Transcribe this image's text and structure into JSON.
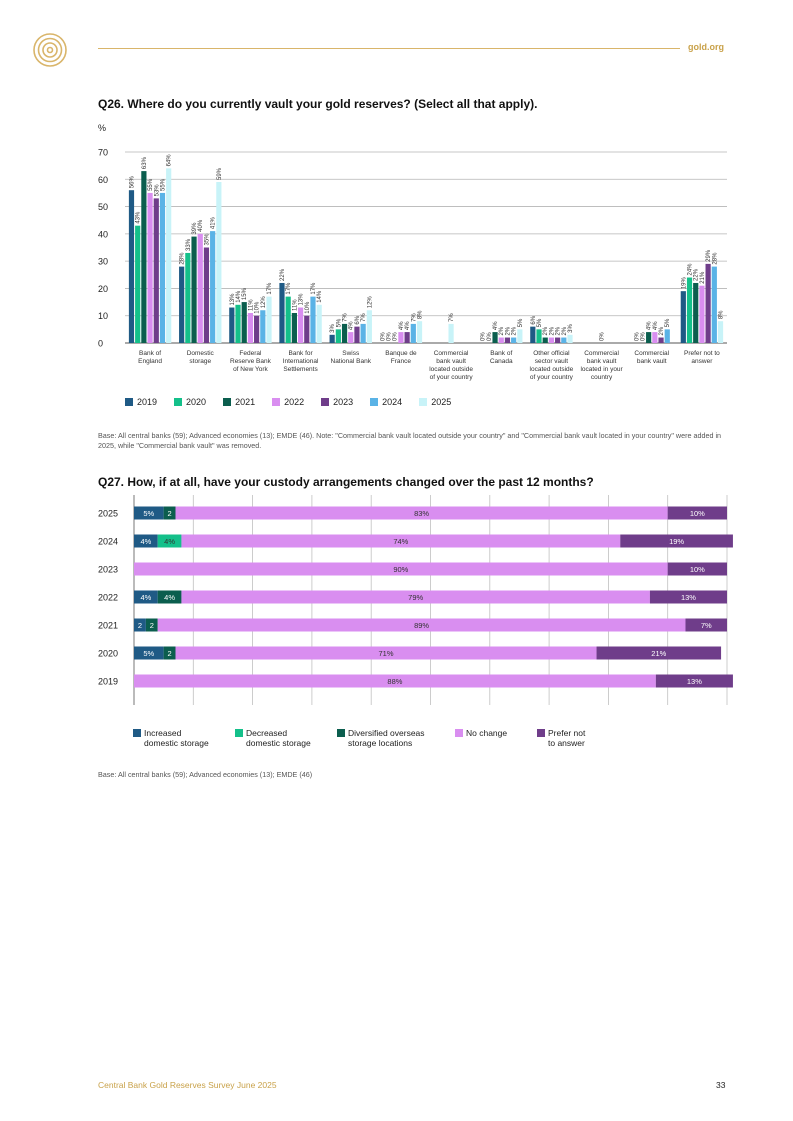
{
  "header": {
    "site": "gold.org"
  },
  "q26": {
    "title": "Q26. Where do you currently vault your gold reserves? (Select all that apply).",
    "note": "Base: All central banks (59); Advanced economies (13); EMDE (46). Note: \"Commercial bank vault located outside your country\" and \"Commercial bank vault located in your country\" were added in 2025, while \"Commercial bank vault\" was removed."
  },
  "q27": {
    "title": "Q27. How, if at all, have your custody arrangements changed over the past 12 months?",
    "note": "Base: All central banks (59); Advanced economies (13); EMDE (46)"
  },
  "footer": {
    "report": "Central Bank Gold Reserves Survey June 2025",
    "page": "33"
  },
  "chart_data": [
    {
      "type": "bar",
      "title": "Q26. Where do you currently vault your gold reserves? (Select all that apply).",
      "ylabel": "%",
      "ylim": [
        0,
        70
      ],
      "yticks": [
        "0",
        "10",
        "20",
        "30",
        "40",
        "50",
        "60",
        "70"
      ],
      "categories": [
        [
          "Bank of",
          "England"
        ],
        [
          "Domestic",
          "storage"
        ],
        [
          "Federal",
          "Reserve Bank",
          "of New York"
        ],
        [
          "Bank for",
          "International",
          "Settlements"
        ],
        [
          "Swiss",
          "National Bank"
        ],
        [
          "Banque de",
          "France"
        ],
        [
          "Commercial",
          "bank vault",
          "located outside",
          "of your country"
        ],
        [
          "Bank of",
          "Canada"
        ],
        [
          "Other official",
          "sector vault",
          "located outside",
          "of your country"
        ],
        [
          "Commercial",
          "bank vault",
          "located in your",
          "country"
        ],
        [
          "Commercial",
          "bank vault"
        ],
        [
          "Prefer not to",
          "answer"
        ]
      ],
      "series": [
        {
          "name": "2019",
          "color": "#1f5a85",
          "values": [
            56,
            28,
            13,
            22,
            3,
            0,
            null,
            0,
            6,
            null,
            0,
            19
          ]
        },
        {
          "name": "2020",
          "color": "#14c08a",
          "values": [
            43,
            33,
            14,
            17,
            5,
            0,
            null,
            0,
            5,
            null,
            0,
            24
          ]
        },
        {
          "name": "2021",
          "color": "#0b5e4e",
          "values": [
            63,
            39,
            15,
            11,
            7,
            0,
            null,
            4,
            2,
            null,
            4,
            22
          ]
        },
        {
          "name": "2022",
          "color": "#d98ef0",
          "values": [
            55,
            40,
            11,
            13,
            4,
            4,
            null,
            2,
            2,
            null,
            4,
            21
          ]
        },
        {
          "name": "2023",
          "color": "#6f3d8a",
          "values": [
            53,
            35,
            10,
            10,
            6,
            4,
            null,
            2,
            2,
            null,
            2,
            29
          ]
        },
        {
          "name": "2024",
          "color": "#5ab3e6",
          "values": [
            55,
            41,
            12,
            17,
            7,
            7,
            null,
            2,
            2,
            null,
            5,
            28
          ]
        },
        {
          "name": "2025",
          "color": "#c8f3f8",
          "values": [
            64,
            59,
            17,
            14,
            12,
            8,
            7,
            5,
            3,
            0,
            null,
            8
          ]
        }
      ]
    },
    {
      "type": "bar",
      "orientation": "horizontal-stacked-100",
      "title": "Q27. How, if at all, have your custody arrangements changed over the past 12 months?",
      "categories": [
        "2025",
        "2024",
        "2023",
        "2022",
        "2021",
        "2020",
        "2019"
      ],
      "series": [
        {
          "name": "Increased domestic storage",
          "color": "#1f5a85",
          "values": [
            5,
            4,
            0,
            4,
            2,
            5,
            0
          ],
          "labels": [
            "5%",
            "4%",
            "",
            "4%",
            "2",
            "5%",
            ""
          ]
        },
        {
          "name": "Decreased domestic storage",
          "color": "#14c08a",
          "values": [
            0,
            4,
            0,
            0,
            0,
            0,
            0
          ],
          "labels": [
            "",
            "4%",
            "",
            "",
            "",
            "",
            ""
          ]
        },
        {
          "name": "Diversified overseas storage locations",
          "color": "#0b5e4e",
          "values": [
            2,
            0,
            0,
            4,
            2,
            2,
            0
          ],
          "labels": [
            "2",
            "",
            "",
            "4%",
            "2",
            "2",
            ""
          ]
        },
        {
          "name": "No change",
          "color": "#d98ef0",
          "values": [
            83,
            74,
            90,
            79,
            89,
            71,
            88
          ],
          "labels": [
            "83%",
            "74%",
            "90%",
            "79%",
            "89%",
            "71%",
            "88%"
          ]
        },
        {
          "name": "Prefer not to answer",
          "color": "#6f3d8a",
          "values": [
            10,
            19,
            10,
            13,
            7,
            21,
            13
          ],
          "labels": [
            "10%",
            "19%",
            "10%",
            "13%",
            "7%",
            "21%",
            "13%"
          ]
        }
      ],
      "legend_labels": [
        [
          "Increased",
          "domestic storage"
        ],
        [
          "Decreased",
          "domestic storage"
        ],
        [
          "Diversified overseas",
          "storage locations"
        ],
        [
          "No change"
        ],
        [
          "Prefer not",
          "to answer"
        ]
      ]
    }
  ]
}
